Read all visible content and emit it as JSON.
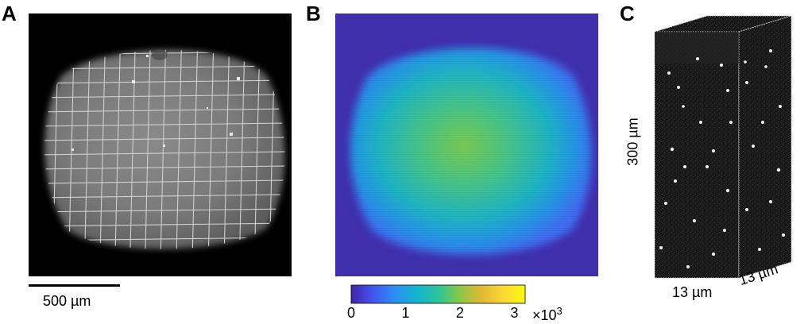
{
  "panels": {
    "a": {
      "letter": "A",
      "scalebar_label": "500 µm"
    },
    "b": {
      "letter": "B",
      "colorbar": {
        "ticks": [
          "0",
          "1",
          "2",
          "3"
        ],
        "tick_values": [
          0,
          1,
          2,
          3
        ],
        "range": [
          0,
          3.2
        ],
        "multiplier_base": "×10",
        "multiplier_exp": "3",
        "colormap": [
          "#3e26a8",
          "#4454f0",
          "#2d8ef2",
          "#13b5d1",
          "#2cc39a",
          "#8ac847",
          "#e0b934",
          "#fcd835",
          "#f9fb0e"
        ]
      }
    },
    "c": {
      "letter": "C",
      "height_label": "300 µm",
      "width_label": "13 µm",
      "depth_label": "13 µm"
    }
  }
}
